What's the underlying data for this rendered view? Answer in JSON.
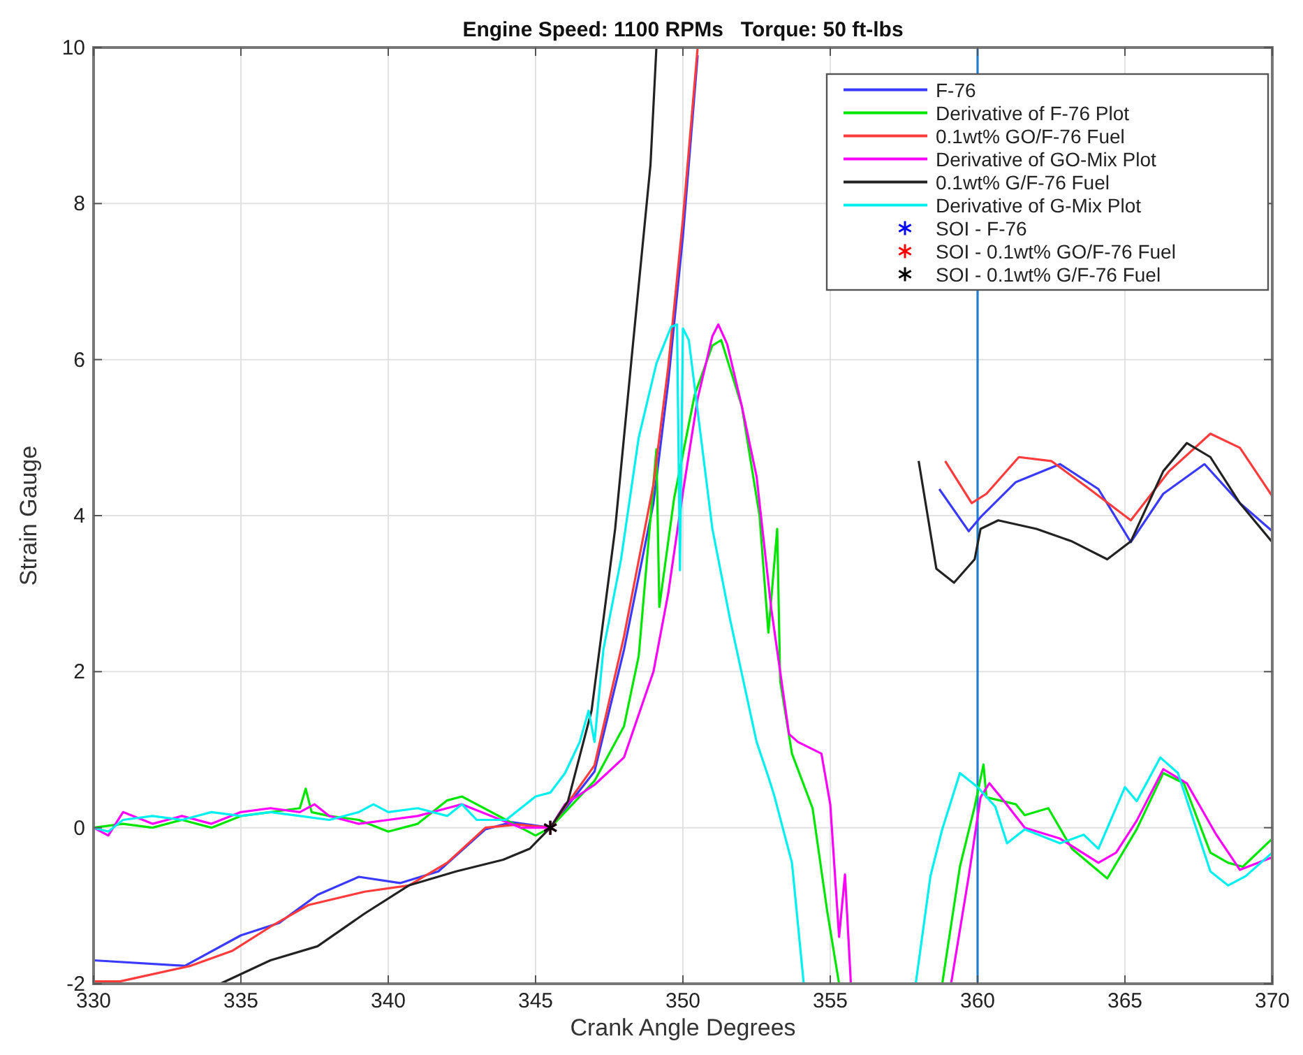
{
  "chart_data": {
    "type": "line",
    "title": "Engine Speed: 1100 RPMs   Torque: 50 ft-lbs",
    "xlabel": "Crank Angle Degrees",
    "ylabel": "Strain Gauge",
    "xlim": [
      330,
      370
    ],
    "ylim": [
      -2,
      10
    ],
    "xticks": [
      330,
      335,
      340,
      345,
      350,
      355,
      360,
      365,
      370
    ],
    "yticks": [
      -2,
      0,
      2,
      4,
      6,
      8,
      10
    ],
    "grid": true,
    "legend": "top right",
    "ref_lines": [
      {
        "axis": "x",
        "value": 360,
        "color": "#1f7fd0"
      }
    ],
    "series": [
      {
        "name": "F-76",
        "color": "#3a3aff",
        "x": [
          330,
          333.1,
          335,
          336.3,
          337.6,
          339,
          340.4,
          341.7,
          343.3,
          344.2,
          345.5,
          347,
          348,
          349,
          349.5,
          350,
          350.5,
          358.1,
          358.7,
          359.7,
          360.1,
          361.3,
          362.8,
          364.1,
          365.2,
          366.3,
          367.7,
          368.9,
          370
        ],
        "values": [
          -1.7,
          -1.77,
          -1.38,
          -1.22,
          -0.86,
          -0.63,
          -0.71,
          -0.56,
          -0.02,
          0.07,
          0,
          0.72,
          2.28,
          4.16,
          5.7,
          7.58,
          9.9,
          null,
          4.34,
          3.8,
          3.98,
          4.43,
          4.66,
          4.34,
          3.66,
          4.28,
          4.66,
          4.16,
          3.8
        ]
      },
      {
        "name": "Derivative of F-76 Plot",
        "color": "#00e600",
        "x": [
          330,
          331,
          332,
          333,
          334,
          335,
          336,
          337,
          337.2,
          337.4,
          338,
          339,
          340,
          341,
          342,
          342.5,
          343,
          344,
          345,
          345.5,
          346,
          347,
          348,
          348.5,
          349.1,
          349.2,
          349.7,
          350.4,
          351,
          351.3,
          352,
          352.6,
          352.9,
          353.2,
          353.3,
          353.7,
          354.4,
          354.9,
          355.3,
          356,
          358.8,
          359.4,
          359.9,
          360.2,
          360.3,
          361.3,
          361.6,
          362.4,
          363.2,
          364.4,
          365.4,
          366.3,
          367,
          367.9,
          368.5,
          369,
          370
        ],
        "values": [
          0,
          0.05,
          0,
          0.1,
          0,
          0.15,
          0.2,
          0.25,
          0.5,
          0.2,
          0.15,
          0.1,
          -0.05,
          0.05,
          0.35,
          0.4,
          0.3,
          0.1,
          -0.1,
          0,
          0.2,
          0.6,
          1.3,
          2.2,
          4.85,
          2.83,
          4.22,
          5.55,
          6.18,
          6.25,
          5.4,
          4,
          2.5,
          3.83,
          1.88,
          0.95,
          0.25,
          -1.08,
          -2,
          null,
          -2,
          -0.5,
          0.27,
          0.81,
          0.39,
          0.3,
          0.16,
          0.25,
          -0.27,
          -0.65,
          -0.02,
          0.7,
          0.57,
          -0.32,
          -0.45,
          -0.5,
          -0.14
        ]
      },
      {
        "name": "0.1wt% GO/F-76 Fuel",
        "color": "#ff3b3b",
        "x": [
          330,
          330.9,
          333.3,
          334.7,
          336,
          337.3,
          339.2,
          340.7,
          342,
          343.3,
          344.4,
          345.5,
          347,
          348,
          349,
          349.5,
          350,
          350.5,
          358.2,
          358.9,
          359.8,
          360.3,
          361.4,
          362.5,
          363.8,
          365.2,
          366.5,
          367.9,
          368.9,
          370
        ],
        "values": [
          -1.97,
          -1.97,
          -1.77,
          -1.58,
          -1.27,
          -0.99,
          -0.82,
          -0.74,
          -0.45,
          0,
          0.04,
          0,
          0.8,
          2.45,
          4.4,
          5.9,
          7.8,
          10,
          null,
          4.7,
          4.16,
          4.28,
          4.75,
          4.7,
          4.34,
          3.94,
          4.57,
          5.05,
          4.87,
          4.25
        ]
      },
      {
        "name": "Derivative of GO-Mix Plot",
        "color": "#ff00ff",
        "x": [
          330,
          330.5,
          331,
          332,
          333,
          334,
          335,
          336,
          337,
          337.5,
          338,
          339,
          340,
          341,
          342,
          342.5,
          343.5,
          344.5,
          345.5,
          346,
          347,
          348,
          349,
          349.5,
          350,
          350.5,
          351,
          351.2,
          351.5,
          352,
          352.5,
          353,
          353.3,
          353.6,
          353.9,
          354.7,
          355,
          355.3,
          355.5,
          355.7,
          356,
          359.1,
          359.7,
          360.1,
          360.4,
          360.9,
          361.6,
          362.8,
          364.1,
          364.7,
          365.4,
          366.3,
          367.1,
          368.1,
          368.9,
          370
        ],
        "values": [
          0,
          -0.1,
          0.2,
          0.05,
          0.15,
          0.05,
          0.2,
          0.25,
          0.2,
          0.3,
          0.15,
          0.05,
          0.1,
          0.15,
          0.25,
          0.3,
          0.15,
          0,
          0,
          0.3,
          0.55,
          0.9,
          2,
          3,
          4.3,
          5.5,
          6.3,
          6.45,
          6.2,
          5.4,
          4.5,
          2.8,
          2,
          1.2,
          1.1,
          0.95,
          0.3,
          -1.4,
          -0.6,
          -2,
          null,
          -2,
          -0.62,
          0.39,
          0.57,
          0.34,
          0,
          -0.14,
          -0.45,
          -0.32,
          0.09,
          0.75,
          0.57,
          -0.09,
          -0.54,
          -0.38
        ]
      },
      {
        "name": "0.1wt% G/F-76 Fuel",
        "color": "#222222",
        "x": [
          334.3,
          336,
          337.6,
          339.2,
          340.7,
          342.3,
          343.9,
          344.8,
          345.5,
          346.1,
          346.9,
          347.7,
          348.3,
          348.9,
          349.1,
          357.5,
          358,
          358.6,
          359.2,
          359.9,
          360.1,
          360.7,
          362,
          363.2,
          364.4,
          365.2,
          366.3,
          367.1,
          367.9,
          368.9,
          370
        ],
        "values": [
          -2,
          -1.7,
          -1.52,
          -1.1,
          -0.74,
          -0.56,
          -0.41,
          -0.27,
          0,
          0.34,
          1.5,
          3.83,
          6.18,
          8.5,
          10,
          null,
          4.7,
          3.32,
          3.14,
          3.44,
          3.83,
          3.94,
          3.83,
          3.67,
          3.44,
          3.67,
          4.57,
          4.93,
          4.75,
          4.16,
          3.66
        ]
      },
      {
        "name": "Derivative of G-Mix Plot",
        "color": "#00f0f0",
        "x": [
          330,
          330.5,
          331,
          332,
          333,
          334,
          335,
          336,
          337,
          338,
          339,
          339.5,
          340,
          341,
          342,
          342.5,
          343,
          344,
          344.5,
          345,
          345.5,
          346,
          346.5,
          346.8,
          347,
          347.3,
          347.9,
          348.5,
          349.1,
          349.6,
          349.8,
          349.9,
          350,
          350.2,
          351,
          351.6,
          352.5,
          352.9,
          353.1,
          353.7,
          354.1,
          356,
          357.9,
          358.4,
          358.8,
          359.4,
          360,
          360.6,
          361,
          361.6,
          362.8,
          363.6,
          364.1,
          365,
          365.4,
          366.2,
          366.8,
          367.9,
          368.5,
          369.1,
          370
        ],
        "values": [
          0,
          -0.05,
          0.1,
          0.15,
          0.1,
          0.2,
          0.15,
          0.2,
          0.15,
          0.1,
          0.2,
          0.3,
          0.2,
          0.25,
          0.15,
          0.3,
          0.1,
          0.1,
          0.25,
          0.4,
          0.45,
          0.7,
          1.1,
          1.5,
          1.1,
          2.28,
          3.44,
          5,
          5.95,
          6.42,
          6.45,
          3.3,
          6.4,
          6.25,
          3.83,
          2.67,
          1.1,
          0.65,
          0.41,
          -0.45,
          -2,
          null,
          -2,
          -0.62,
          -0.02,
          0.7,
          0.52,
          0.27,
          -0.2,
          -0.02,
          -0.2,
          -0.09,
          -0.27,
          0.52,
          0.34,
          0.9,
          0.7,
          -0.56,
          -0.74,
          -0.62,
          -0.32
        ]
      },
      {
        "type": "scatter",
        "marker": "cross",
        "name": "SOI - F-76",
        "color": "#0000ff",
        "x": [
          345.5
        ],
        "values": [
          0
        ]
      },
      {
        "type": "scatter",
        "marker": "cross",
        "name": "SOI - 0.1wt% GO/F-76 Fuel",
        "color": "#ff0000",
        "x": [
          345.5
        ],
        "values": [
          0
        ]
      },
      {
        "type": "scatter",
        "marker": "cross",
        "name": "SOI - 0.1wt% G/F-76 Fuel",
        "color": "#000000",
        "x": [
          345.5
        ],
        "values": [
          0
        ]
      }
    ]
  }
}
